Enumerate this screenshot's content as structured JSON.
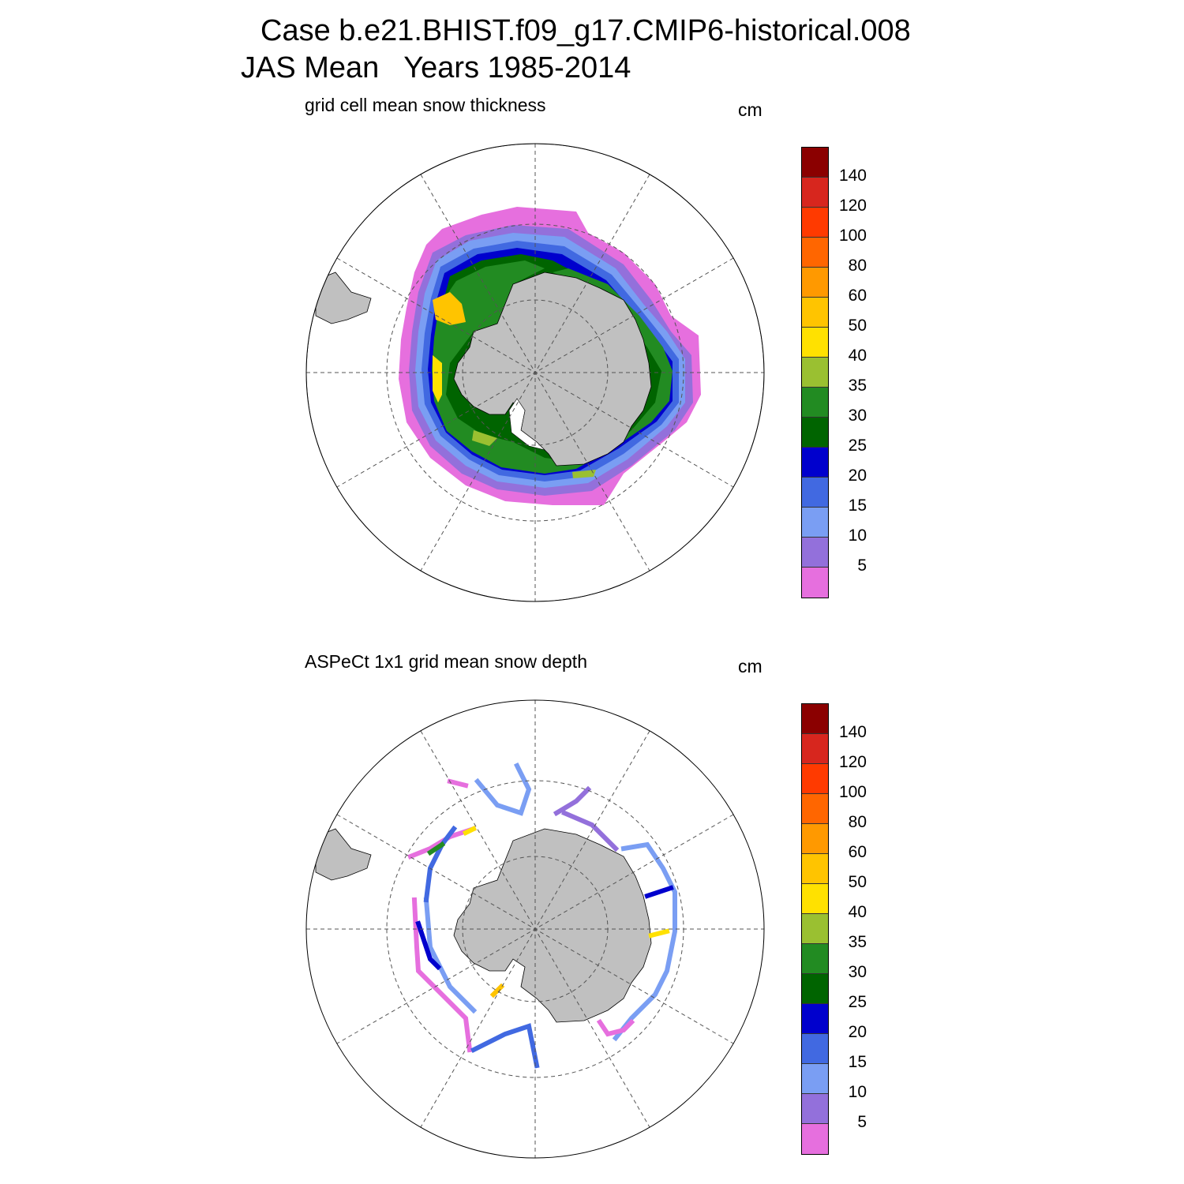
{
  "header": {
    "title": "Case b.e21.BHIST.f09_g17.CMIP6-historical.008",
    "subtitle": "JAS Mean   Years 1985-2014"
  },
  "panels": [
    {
      "title": "grid cell mean snow thickness",
      "units": "cm"
    },
    {
      "title": "ASPeCt 1x1 grid mean snow depth",
      "units": "cm"
    }
  ],
  "colorbar": {
    "levels": [
      "140",
      "120",
      "100",
      "80",
      "60",
      "50",
      "40",
      "35",
      "30",
      "25",
      "20",
      "15",
      "10",
      "5"
    ],
    "colors": [
      "#8b0000",
      "#d7261e",
      "#ff3a00",
      "#ff6600",
      "#ff9900",
      "#ffc400",
      "#ffe100",
      "#9ac031",
      "#228b22",
      "#006400",
      "#0000cd",
      "#4169e1",
      "#7a9ef3",
      "#9370db",
      "#e66fde"
    ]
  },
  "map_colors": {
    "land": "#c0c0c0",
    "ocean": "#ffffff",
    "grid": "#555555"
  }
}
